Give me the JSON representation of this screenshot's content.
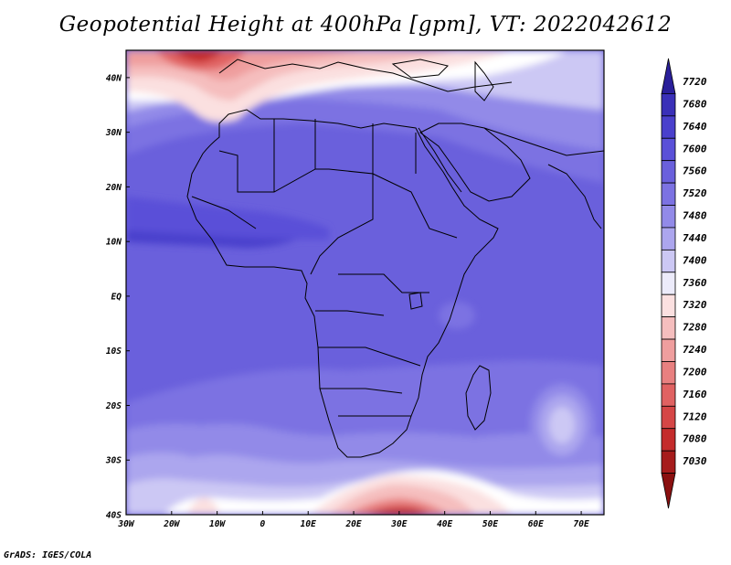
{
  "title": "Geopotential Height at 400hPa [gpm], VT: 2022042612",
  "credit": "GrADS: IGES/COLA",
  "map": {
    "lon_labels": [
      "30W",
      "20W",
      "10W",
      "0",
      "10E",
      "20E",
      "30E",
      "40E",
      "50E",
      "60E",
      "70E"
    ],
    "lat_labels": [
      "40N",
      "30N",
      "20N",
      "10N",
      "EQ",
      "10S",
      "20S",
      "30S",
      "40S"
    ],
    "lon_range": [
      -30,
      75
    ],
    "lat_range": [
      -40,
      45
    ]
  },
  "colorbar": {
    "levels": [
      "7720",
      "7680",
      "7640",
      "7600",
      "7560",
      "7520",
      "7480",
      "7440",
      "7400",
      "7360",
      "7320",
      "7280",
      "7240",
      "7200",
      "7160",
      "7120",
      "7080",
      "7030"
    ],
    "colors": [
      "#2a1f9a",
      "#3a30b8",
      "#4a40cc",
      "#5a50d8",
      "#6a60dc",
      "#7c72e2",
      "#928ae8",
      "#aca6ee",
      "#ccc8f4",
      "#ecebfa",
      "#fbe0e0",
      "#f5bebe",
      "#ef9e9e",
      "#e88080",
      "#e06262",
      "#d54646",
      "#c42c2c",
      "#a61c1c",
      "#8a1010"
    ],
    "map_colors": {
      "deep_blue": "#4a40cc",
      "mid_blue": "#6a60dc",
      "light_blue": "#928ae8",
      "pale_blue": "#ccc8f4",
      "white": "#ffffff",
      "pink": "#f5bebe",
      "red": "#e06262"
    }
  }
}
